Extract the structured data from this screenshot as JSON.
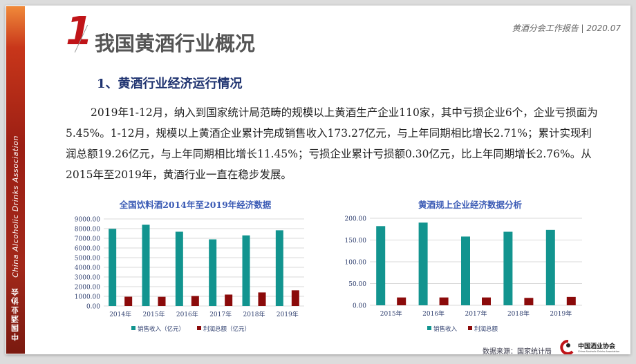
{
  "sidebar": {
    "cn": "中国酒业协会",
    "en": "China Alcoholic Drinks Association"
  },
  "header": {
    "note": "黄酒分会工作报告 | 2020.07",
    "section_number": "1",
    "title": "我国黄酒行业概况"
  },
  "subtitle": "1、黄酒行业经济运行情况",
  "paragraph": "2019年1-12月，纳入到国家统计局范畴的规模以上黄酒生产企业110家，其中亏损企业6个，企业亏损面为5.45%。1-12月，规模以上黄酒企业累计完成销售收入173.27亿元，与上年同期相比增长2.71%；累计实现利润总额19.26亿元，与上年同期相比增长11.45%；亏损企业累计亏损额0.30亿元，比上年同期增长2.76%。从2015年至2019年，黄酒行业一直在稳步发展。",
  "colors": {
    "revenue": "#12948f",
    "profit": "#8b0a0a",
    "title": "#3b5bb5",
    "accent": "#c01418"
  },
  "chart_data": [
    {
      "type": "bar",
      "title": "全国饮料酒2014年至2019年经济数据",
      "categories": [
        "2014年",
        "2015年",
        "2016年",
        "2017年",
        "2018年",
        "2019年"
      ],
      "series": [
        {
          "name": "销售收入（亿元）",
          "values": [
            7980,
            8400,
            7680,
            6890,
            7300,
            7830
          ]
        },
        {
          "name": "利润总额（亿元）",
          "values": [
            960,
            950,
            1030,
            1180,
            1400,
            1620
          ]
        }
      ],
      "ylim": [
        0,
        9000
      ],
      "yticks": [
        "0.00",
        "1000.00",
        "2000.00",
        "3000.00",
        "4000.00",
        "5000.00",
        "6000.00",
        "7000.00",
        "8000.00",
        "9000.00"
      ],
      "grid": true,
      "legend": "bottom"
    },
    {
      "type": "bar",
      "title": "黄酒规上企业经济数据分析",
      "categories": [
        "2015年",
        "2016年",
        "2017年",
        "2018年",
        "2019年"
      ],
      "series": [
        {
          "name": "销售收入",
          "values": [
            182,
            190,
            158,
            169,
            173.27
          ]
        },
        {
          "name": "利润总额",
          "values": [
            18,
            18,
            18,
            17,
            19.26
          ]
        }
      ],
      "ylim": [
        0,
        200
      ],
      "yticks": [
        "0.00",
        "50.00",
        "100.00",
        "150.00",
        "200.00"
      ],
      "grid": true,
      "legend": "bottom"
    }
  ],
  "footer": {
    "source": "数据来源：国家统计局",
    "logo_text": "中国酒业协会",
    "logo_sub": "China Alcoholic Drinks Association"
  }
}
